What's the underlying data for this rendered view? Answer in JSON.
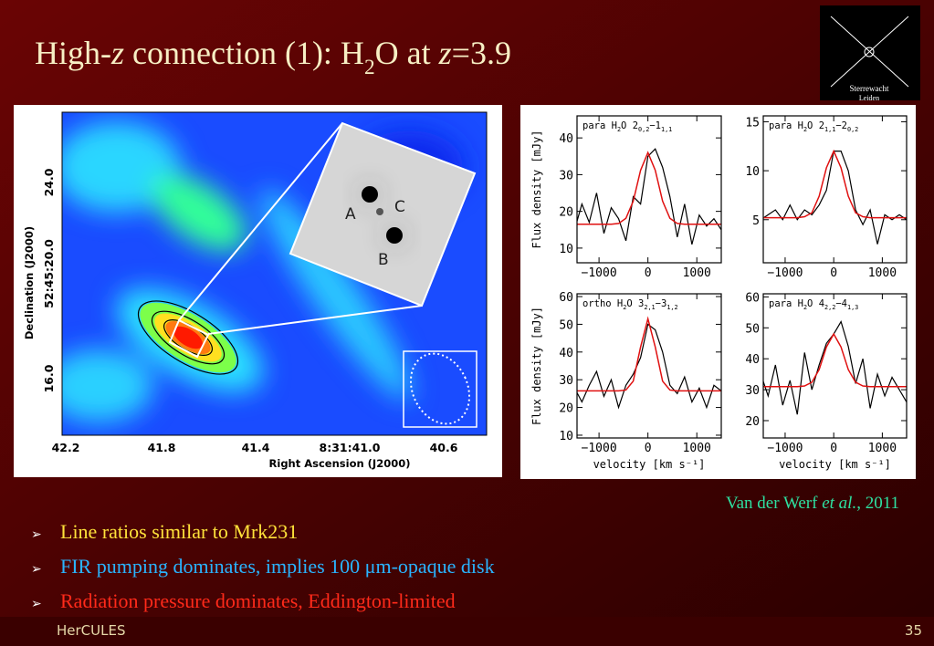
{
  "title": [
    {
      "t": "High-"
    },
    {
      "t": "z",
      "i": true
    },
    {
      "t": " connection (1): H"
    },
    {
      "t": "2",
      "sub": true
    },
    {
      "t": "O at "
    },
    {
      "t": "z",
      "i": true
    },
    {
      "t": "=3.9"
    }
  ],
  "logo": [
    "Sterrewacht",
    "Leiden"
  ],
  "map": {
    "ra_labels": [
      "42.2",
      "41.8",
      "41.4",
      "8:31:41.0",
      "40.6"
    ],
    "dec_labels": [
      "24.0",
      "52:45:20.0",
      "16.0"
    ],
    "xlabel": "Right Ascension (J2000)",
    "ylabel": "Declination (J2000)",
    "images": [
      "A",
      "C",
      "B"
    ]
  },
  "spectra": {
    "ylabel": "Flux density [mJy]",
    "xlabel": "velocity [km s⁻¹]",
    "xlim": [
      -1450,
      1500
    ],
    "xticks": [
      {
        "value": -1000,
        "label": "−1000"
      },
      0,
      1000
    ],
    "x": [
      -1500,
      -1350,
      -1200,
      -1050,
      -900,
      -750,
      -600,
      -450,
      -300,
      -150,
      0,
      150,
      300,
      450,
      600,
      750,
      900,
      1050,
      1200,
      1350,
      1500
    ],
    "panels": [
      {
        "label": [
          {
            "t": "para H"
          },
          {
            "t": "2",
            "sub": true
          },
          {
            "t": "O 2"
          },
          {
            "t": "0,2",
            "sub": true
          },
          {
            "t": "−1"
          },
          {
            "t": "1,1",
            "sub": true
          }
        ],
        "ylim": [
          6,
          46
        ],
        "yticks": [
          10,
          20,
          30,
          40
        ],
        "values": [
          15,
          22,
          17,
          25,
          14,
          21,
          18,
          12,
          24,
          22,
          35,
          37,
          32,
          24,
          13,
          22,
          11,
          19,
          16,
          18,
          15
        ],
        "fit": [
          16.5,
          16.5,
          16.5,
          16.5,
          16.5,
          16.5,
          16.7,
          18.1,
          22.8,
          31.2,
          36,
          31.2,
          22.8,
          18.1,
          16.7,
          16.5,
          16.5,
          16.5,
          16.5,
          16.5,
          16.5
        ]
      },
      {
        "label": [
          {
            "t": "para H"
          },
          {
            "t": "2",
            "sub": true
          },
          {
            "t": "O 2"
          },
          {
            "t": "1,1",
            "sub": true
          },
          {
            "t": "−2"
          },
          {
            "t": "0,2",
            "sub": true
          }
        ],
        "ylim": [
          0.6,
          15.6
        ],
        "yticks": [
          5,
          10,
          15
        ],
        "values": [
          5,
          5.5,
          6,
          5,
          6.5,
          5,
          6,
          5.5,
          6.5,
          8,
          12,
          12,
          10,
          6,
          4.5,
          6,
          2.5,
          5.5,
          5,
          5.5,
          5
        ],
        "fit": [
          5.2,
          5.2,
          5.2,
          5.2,
          5.2,
          5.2,
          5.3,
          5.7,
          7.4,
          10.3,
          12,
          10.3,
          7.4,
          5.7,
          5.3,
          5.2,
          5.2,
          5.2,
          5.2,
          5.2,
          5.2
        ]
      },
      {
        "label": [
          {
            "t": "ortho H"
          },
          {
            "t": "2",
            "sub": true
          },
          {
            "t": "O 3"
          },
          {
            "t": "2,1",
            "sub": true
          },
          {
            "t": "−3"
          },
          {
            "t": "1,2",
            "sub": true
          }
        ],
        "ylim": [
          9,
          61
        ],
        "yticks": [
          10,
          20,
          30,
          40,
          50,
          60
        ],
        "values": [
          27,
          22,
          28,
          33,
          24,
          30,
          20,
          28,
          32,
          38,
          50,
          48,
          40,
          28,
          25,
          31,
          22,
          27,
          20,
          28,
          26
        ],
        "fit": [
          26,
          26,
          26,
          26,
          26,
          26,
          26,
          26.3,
          29.5,
          41.8,
          52,
          41.8,
          29.5,
          26.3,
          26,
          26,
          26,
          26,
          26,
          26,
          26
        ]
      },
      {
        "label": [
          {
            "t": "para H"
          },
          {
            "t": "2",
            "sub": true
          },
          {
            "t": "O 4"
          },
          {
            "t": "2,2",
            "sub": true
          },
          {
            "t": "−4"
          },
          {
            "t": "1,3",
            "sub": true
          }
        ],
        "ylim": [
          14.4,
          61
        ],
        "yticks": [
          20,
          30,
          40,
          50,
          60
        ],
        "values": [
          35,
          28,
          38,
          25,
          33,
          22,
          42,
          30,
          38,
          45,
          48,
          52,
          44,
          32,
          40,
          24,
          35,
          28,
          34,
          30,
          26
        ],
        "fit": [
          31,
          31,
          31,
          31,
          31,
          31,
          31.2,
          32.4,
          36.5,
          43.8,
          48,
          43.8,
          36.5,
          32.4,
          31.2,
          31,
          31,
          31,
          31,
          31,
          31
        ]
      }
    ]
  },
  "citation": [
    {
      "t": "Van der Werf "
    },
    {
      "t": "et al.",
      "i": true
    },
    {
      "t": ", 2011"
    }
  ],
  "bullets": [
    {
      "text": "Line ratios similar to Mrk231",
      "color": "#ffe23a"
    },
    {
      "text": "FIR pumping dominates, implies 100 μm-opaque disk",
      "color": "#2ab4ff"
    },
    {
      "text": "Radiation pressure dominates, Eddington-limited",
      "color": "#ff2a1a"
    }
  ],
  "footer": {
    "left": "HerCULES",
    "right": "35"
  }
}
